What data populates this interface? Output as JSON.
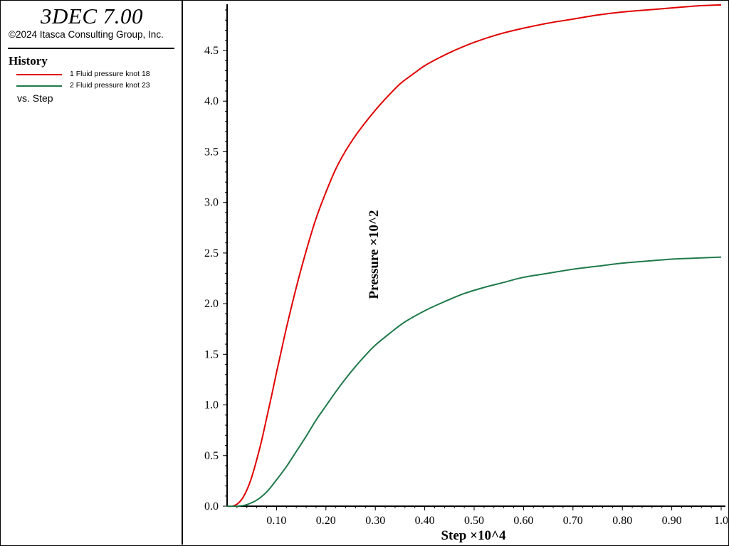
{
  "panel": {
    "app_title": "3DEC 7.00",
    "copyright": "©2024 Itasca Consulting Group, Inc.",
    "history_heading": "History",
    "legend": [
      {
        "label": "1 Fluid pressure knot 18",
        "color": "#e00000"
      },
      {
        "label": "2 Fluid pressure knot 23",
        "color": "#1f7a4a"
      }
    ],
    "vs_label": "vs. Step"
  },
  "chart_data": {
    "type": "line",
    "xlabel": "Step ×10^4",
    "ylabel": "Pressure ×10^2",
    "xlim": [
      0.0,
      1.0
    ],
    "ylim": [
      0.0,
      4.95
    ],
    "xticks": [
      "0.10",
      "0.20",
      "0.30",
      "0.40",
      "0.50",
      "0.60",
      "0.70",
      "0.80",
      "0.90",
      "1.0"
    ],
    "yticks": [
      "0.0",
      "0.5",
      "1.0",
      "1.5",
      "2.0",
      "2.5",
      "3.0",
      "3.5",
      "4.0",
      "4.5"
    ],
    "grid": false,
    "legend_placement": "left-panel",
    "series": [
      {
        "name": "1 Fluid pressure knot 18",
        "color": "#e00000",
        "x": [
          0.0,
          0.01,
          0.02,
          0.03,
          0.04,
          0.05,
          0.06,
          0.07,
          0.08,
          0.09,
          0.1,
          0.11,
          0.12,
          0.14,
          0.16,
          0.18,
          0.2,
          0.22,
          0.24,
          0.26,
          0.28,
          0.3,
          0.32,
          0.35,
          0.38,
          0.4,
          0.43,
          0.46,
          0.5,
          0.55,
          0.6,
          0.65,
          0.7,
          0.75,
          0.8,
          0.85,
          0.9,
          0.95,
          1.0
        ],
        "y": [
          0.0,
          0.0,
          0.02,
          0.07,
          0.16,
          0.29,
          0.46,
          0.65,
          0.87,
          1.09,
          1.32,
          1.54,
          1.76,
          2.16,
          2.52,
          2.84,
          3.1,
          3.33,
          3.51,
          3.66,
          3.79,
          3.91,
          4.02,
          4.17,
          4.28,
          4.35,
          4.43,
          4.5,
          4.58,
          4.66,
          4.72,
          4.77,
          4.81,
          4.85,
          4.88,
          4.9,
          4.92,
          4.94,
          4.95
        ]
      },
      {
        "name": "2 Fluid pressure knot 23",
        "color": "#1f7a4a",
        "x": [
          0.0,
          0.02,
          0.03,
          0.04,
          0.06,
          0.08,
          0.1,
          0.12,
          0.14,
          0.16,
          0.18,
          0.2,
          0.22,
          0.24,
          0.26,
          0.28,
          0.3,
          0.33,
          0.36,
          0.4,
          0.44,
          0.48,
          0.52,
          0.56,
          0.6,
          0.65,
          0.7,
          0.75,
          0.8,
          0.85,
          0.9,
          0.95,
          1.0
        ],
        "y": [
          0.0,
          0.0,
          0.005,
          0.015,
          0.06,
          0.14,
          0.26,
          0.39,
          0.54,
          0.69,
          0.85,
          0.99,
          1.13,
          1.26,
          1.38,
          1.49,
          1.59,
          1.71,
          1.82,
          1.93,
          2.02,
          2.1,
          2.16,
          2.21,
          2.26,
          2.3,
          2.34,
          2.37,
          2.4,
          2.42,
          2.44,
          2.45,
          2.46
        ]
      }
    ]
  }
}
